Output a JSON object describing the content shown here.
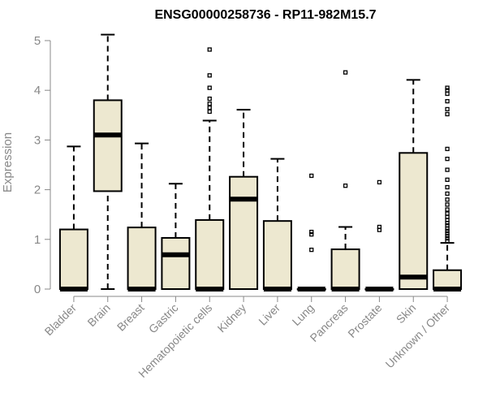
{
  "chart_data": {
    "type": "box",
    "title": "ENSG00000258736 - RP11-982M15.7",
    "xlabel": "",
    "ylabel": "Expression",
    "ylim": [
      0,
      5.1
    ],
    "yticks": [
      0,
      1,
      2,
      3,
      4,
      5
    ],
    "grid": false,
    "legend": "none",
    "colors": {
      "box_fill": "#ede8d0",
      "stroke": "#000000",
      "axis_text": "#888888"
    },
    "categories": [
      "Bladder",
      "Brain",
      "Breast",
      "Gastric",
      "Hematopoietic cells",
      "Kidney",
      "Liver",
      "Lung",
      "Pancreas",
      "Prostate",
      "Skin",
      "Unknown / Other"
    ],
    "boxes": [
      {
        "category": "Bladder",
        "min": 0,
        "q1": 0,
        "median": 0,
        "q3": 1.2,
        "max": 2.87,
        "outliers": []
      },
      {
        "category": "Brain",
        "min": 0,
        "q1": 1.97,
        "median": 3.1,
        "q3": 3.8,
        "max": 5.12,
        "outliers": []
      },
      {
        "category": "Breast",
        "min": 0,
        "q1": 0,
        "median": 0,
        "q3": 1.24,
        "max": 2.93,
        "outliers": []
      },
      {
        "category": "Gastric",
        "min": 0,
        "q1": 0,
        "median": 0.69,
        "q3": 1.03,
        "max": 2.12,
        "outliers": []
      },
      {
        "category": "Hematopoietic cells",
        "min": 0,
        "q1": 0,
        "median": 0,
        "q3": 1.39,
        "max": 3.39,
        "outliers": [
          3.57,
          3.65,
          3.73,
          3.83,
          4.05,
          4.3,
          4.82
        ]
      },
      {
        "category": "Kidney",
        "min": 0,
        "q1": 0,
        "median": 1.81,
        "q3": 2.26,
        "max": 3.61,
        "outliers": []
      },
      {
        "category": "Liver",
        "min": 0,
        "q1": 0,
        "median": 0,
        "q3": 1.37,
        "max": 2.62,
        "outliers": []
      },
      {
        "category": "Lung",
        "min": 0,
        "q1": 0,
        "median": 0,
        "q3": 0,
        "max": 0,
        "outliers": [
          0.79,
          1.1,
          1.15,
          2.28
        ]
      },
      {
        "category": "Pancreas",
        "min": 0,
        "q1": 0,
        "median": 0,
        "q3": 0.8,
        "max": 1.25,
        "outliers": [
          2.08,
          4.36
        ]
      },
      {
        "category": "Prostate",
        "min": 0,
        "q1": 0,
        "median": 0,
        "q3": 0,
        "max": 0,
        "outliers": [
          1.19,
          1.25,
          2.15
        ]
      },
      {
        "category": "Skin",
        "min": 0,
        "q1": 0,
        "median": 0.24,
        "q3": 2.74,
        "max": 4.21,
        "outliers": []
      },
      {
        "category": "Unknown / Other",
        "min": 0,
        "q1": 0,
        "median": 0,
        "q3": 0.38,
        "max": 0.93,
        "outliers": [
          0.97,
          1.02,
          1.07,
          1.12,
          1.17,
          1.22,
          1.28,
          1.33,
          1.39,
          1.45,
          1.52,
          1.6,
          1.7,
          1.8,
          1.92,
          2.05,
          2.2,
          2.4,
          2.62,
          2.82,
          3.52,
          3.62,
          3.78,
          3.93,
          4.0,
          4.05
        ]
      }
    ]
  }
}
